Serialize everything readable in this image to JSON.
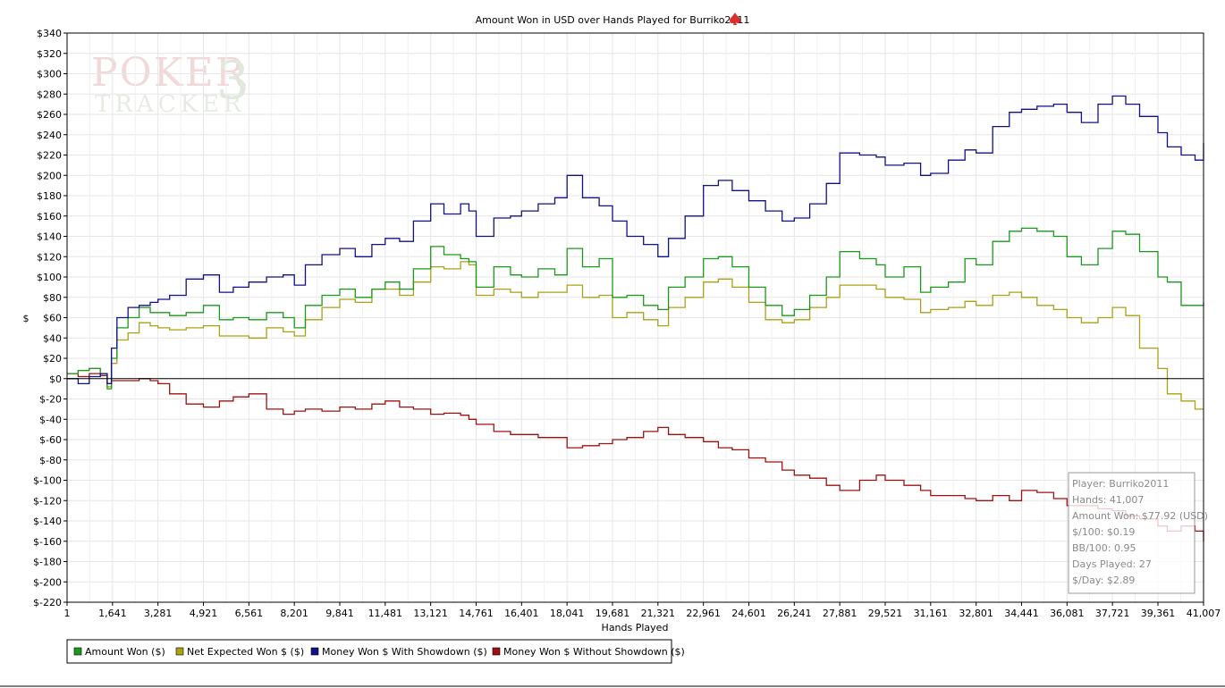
{
  "watermark": {
    "line1": "POKER",
    "line2": "TRACKER",
    "mark": "3"
  },
  "chart_data": {
    "type": "line",
    "title": "Amount Won in USD over Hands Played for Burriko2011",
    "title_icon": "spade-icon",
    "xlabel": "Hands Played",
    "ylabel": "$",
    "xlim": [
      1,
      41007
    ],
    "ylim": [
      -220,
      340
    ],
    "grid": true,
    "x_ticks": [
      "1",
      "1,641",
      "3,281",
      "4,921",
      "6,561",
      "8,201",
      "9,841",
      "11,481",
      "13,121",
      "14,761",
      "16,401",
      "18,041",
      "19,681",
      "21,321",
      "22,961",
      "24,601",
      "26,241",
      "27,881",
      "29,521",
      "31,161",
      "32,801",
      "34,441",
      "36,081",
      "37,721",
      "39,361",
      "41,007"
    ],
    "x_tick_values": [
      1,
      1641,
      3281,
      4921,
      6561,
      8201,
      9841,
      11481,
      13121,
      14761,
      16401,
      18041,
      19681,
      21321,
      22961,
      24601,
      26241,
      27881,
      29521,
      31161,
      32801,
      34441,
      36081,
      37721,
      39361,
      41007
    ],
    "y_ticks": [
      "$340",
      "$320",
      "$300",
      "$280",
      "$260",
      "$240",
      "$220",
      "$200",
      "$180",
      "$160",
      "$140",
      "$120",
      "$100",
      "$80",
      "$60",
      "$40",
      "$20",
      "$0",
      "$-20",
      "$-40",
      "$-60",
      "$-80",
      "$-100",
      "$-120",
      "$-140",
      "$-160",
      "$-180",
      "$-200",
      "$-220"
    ],
    "y_tick_values": [
      340,
      320,
      300,
      280,
      260,
      240,
      220,
      200,
      180,
      160,
      140,
      120,
      100,
      80,
      60,
      40,
      20,
      0,
      -20,
      -40,
      -60,
      -80,
      -100,
      -120,
      -140,
      -160,
      -180,
      -200,
      -220
    ],
    "series": [
      {
        "name": "Amount Won ($)",
        "color": "#1a9a1a",
        "x": [
          1,
          400,
          800,
          1200,
          1450,
          1600,
          1800,
          2200,
          2600,
          3000,
          3281,
          3700,
          4300,
          4921,
          5500,
          6000,
          6561,
          7200,
          7800,
          8201,
          8600,
          9200,
          9841,
          10400,
          11000,
          11481,
          12000,
          12500,
          13121,
          13600,
          14200,
          14500,
          14761,
          15400,
          16000,
          16401,
          17000,
          17600,
          18041,
          18600,
          19200,
          19681,
          20200,
          20800,
          21321,
          21700,
          22300,
          22961,
          23500,
          24000,
          24601,
          25200,
          25800,
          26241,
          26800,
          27400,
          27881,
          28600,
          29200,
          29521,
          30200,
          30800,
          31161,
          31800,
          32400,
          32801,
          33400,
          34000,
          34441,
          35000,
          35600,
          36081,
          36600,
          37200,
          37721,
          38200,
          38700,
          39361,
          39700,
          40200,
          40700,
          41007
        ],
        "values": [
          5,
          8,
          10,
          5,
          -10,
          20,
          50,
          60,
          70,
          65,
          65,
          62,
          65,
          72,
          58,
          60,
          58,
          65,
          60,
          50,
          72,
          82,
          88,
          80,
          88,
          95,
          88,
          108,
          130,
          122,
          118,
          115,
          90,
          110,
          102,
          100,
          108,
          102,
          128,
          110,
          118,
          80,
          82,
          72,
          68,
          90,
          100,
          118,
          120,
          110,
          90,
          72,
          62,
          68,
          82,
          100,
          125,
          118,
          112,
          100,
          110,
          85,
          90,
          95,
          118,
          112,
          135,
          145,
          148,
          145,
          140,
          120,
          112,
          128,
          145,
          142,
          125,
          100,
          95,
          72,
          72,
          75
        ]
      },
      {
        "name": "Net Expected Won $ ($)",
        "color": "#a8a214",
        "x": [
          1,
          400,
          800,
          1200,
          1450,
          1600,
          1800,
          2200,
          2600,
          3000,
          3281,
          3700,
          4300,
          4921,
          5500,
          6000,
          6561,
          7200,
          7800,
          8201,
          8600,
          9200,
          9841,
          10400,
          11000,
          11481,
          12000,
          12500,
          13121,
          13600,
          14200,
          14500,
          14761,
          15400,
          16000,
          16401,
          17000,
          17600,
          18041,
          18600,
          19200,
          19681,
          20200,
          20800,
          21321,
          21700,
          22300,
          22961,
          23500,
          24000,
          24601,
          25200,
          25800,
          26241,
          26800,
          27400,
          27881,
          28600,
          29200,
          29521,
          30200,
          30800,
          31161,
          31800,
          32400,
          32801,
          33400,
          34000,
          34441,
          35000,
          35600,
          36081,
          36600,
          37200,
          37721,
          38200,
          38700,
          39361,
          39700,
          40200,
          40700,
          41007
        ],
        "values": [
          5,
          8,
          10,
          5,
          -8,
          15,
          38,
          45,
          55,
          52,
          50,
          48,
          50,
          52,
          42,
          42,
          40,
          50,
          46,
          42,
          58,
          70,
          78,
          75,
          88,
          88,
          82,
          95,
          110,
          108,
          115,
          112,
          82,
          88,
          85,
          80,
          85,
          85,
          92,
          80,
          82,
          60,
          65,
          58,
          52,
          70,
          80,
          95,
          98,
          90,
          75,
          58,
          55,
          58,
          70,
          80,
          92,
          92,
          88,
          80,
          78,
          65,
          68,
          70,
          76,
          72,
          82,
          85,
          80,
          72,
          68,
          60,
          55,
          60,
          70,
          62,
          30,
          10,
          -15,
          -22,
          -30,
          -30
        ]
      },
      {
        "name": "Money Won $ With Showdown ($)",
        "color": "#10108a",
        "x": [
          1,
          400,
          800,
          1200,
          1450,
          1600,
          1800,
          2200,
          2600,
          3000,
          3281,
          3700,
          4300,
          4921,
          5500,
          6000,
          6561,
          7200,
          7800,
          8201,
          8600,
          9200,
          9841,
          10400,
          11000,
          11481,
          12000,
          12500,
          13121,
          13600,
          14200,
          14500,
          14761,
          15400,
          16000,
          16401,
          17000,
          17600,
          18041,
          18600,
          19200,
          19681,
          20200,
          20800,
          21321,
          21700,
          22300,
          22961,
          23500,
          24000,
          24601,
          25200,
          25800,
          26241,
          26800,
          27400,
          27881,
          28600,
          29200,
          29521,
          30200,
          30800,
          31161,
          31800,
          32400,
          32801,
          33400,
          34000,
          34441,
          35000,
          35600,
          36081,
          36600,
          37200,
          37721,
          38200,
          38700,
          39361,
          39700,
          40200,
          40700,
          41007
        ],
        "values": [
          0,
          -5,
          2,
          5,
          -5,
          30,
          60,
          70,
          72,
          75,
          78,
          82,
          98,
          102,
          85,
          90,
          95,
          100,
          102,
          92,
          112,
          122,
          128,
          120,
          132,
          138,
          135,
          155,
          172,
          162,
          172,
          165,
          140,
          158,
          160,
          165,
          172,
          178,
          200,
          178,
          170,
          155,
          140,
          132,
          120,
          138,
          160,
          190,
          195,
          185,
          175,
          165,
          155,
          158,
          172,
          192,
          222,
          220,
          218,
          210,
          212,
          200,
          202,
          215,
          225,
          222,
          248,
          262,
          265,
          268,
          270,
          262,
          252,
          270,
          278,
          270,
          258,
          242,
          228,
          220,
          215,
          232
        ]
      },
      {
        "name": "Money Won $ Without Showdown ($)",
        "color": "#a01010",
        "x": [
          1,
          400,
          800,
          1200,
          1450,
          1600,
          1800,
          2200,
          2600,
          3000,
          3281,
          3700,
          4300,
          4921,
          5500,
          6000,
          6561,
          7200,
          7800,
          8201,
          8600,
          9200,
          9841,
          10400,
          11000,
          11481,
          12000,
          12500,
          13121,
          13600,
          14200,
          14500,
          14761,
          15400,
          16000,
          16401,
          17000,
          17600,
          18041,
          18600,
          19200,
          19681,
          20200,
          20800,
          21321,
          21700,
          22300,
          22961,
          23500,
          24000,
          24601,
          25200,
          25800,
          26241,
          26800,
          27400,
          27881,
          28600,
          29200,
          29521,
          30200,
          30800,
          31161,
          31800,
          32400,
          32801,
          33400,
          34000,
          34441,
          35000,
          35600,
          36081,
          36600,
          37200,
          37721,
          38200,
          38700,
          39361,
          39700,
          40200,
          40700,
          41007
        ],
        "values": [
          5,
          2,
          5,
          3,
          -5,
          -2,
          -2,
          -2,
          0,
          -2,
          -5,
          -15,
          -25,
          -28,
          -22,
          -18,
          -15,
          -30,
          -35,
          -32,
          -30,
          -32,
          -28,
          -30,
          -25,
          -22,
          -28,
          -30,
          -35,
          -34,
          -36,
          -40,
          -45,
          -52,
          -55,
          -55,
          -58,
          -58,
          -68,
          -66,
          -64,
          -60,
          -58,
          -52,
          -48,
          -55,
          -58,
          -62,
          -68,
          -70,
          -78,
          -82,
          -90,
          -95,
          -98,
          -105,
          -110,
          -100,
          -95,
          -100,
          -105,
          -110,
          -115,
          -115,
          -118,
          -120,
          -115,
          -120,
          -110,
          -112,
          -118,
          -125,
          -125,
          -128,
          -130,
          -135,
          -138,
          -145,
          -150,
          -145,
          -150,
          -160
        ]
      }
    ]
  },
  "stats": [
    "Player: Burriko2011",
    "Hands: 41,007",
    "Amount Won: $77.92 (USD)",
    "$/100: $0.19",
    "BB/100: 0.95",
    "Days Played: 27",
    "$/Day: $2.89"
  ],
  "legend": [
    "Amount Won ($)",
    "Net Expected Won $ ($)",
    "Money Won $ With Showdown ($)",
    "Money Won $ Without Showdown ($)"
  ]
}
